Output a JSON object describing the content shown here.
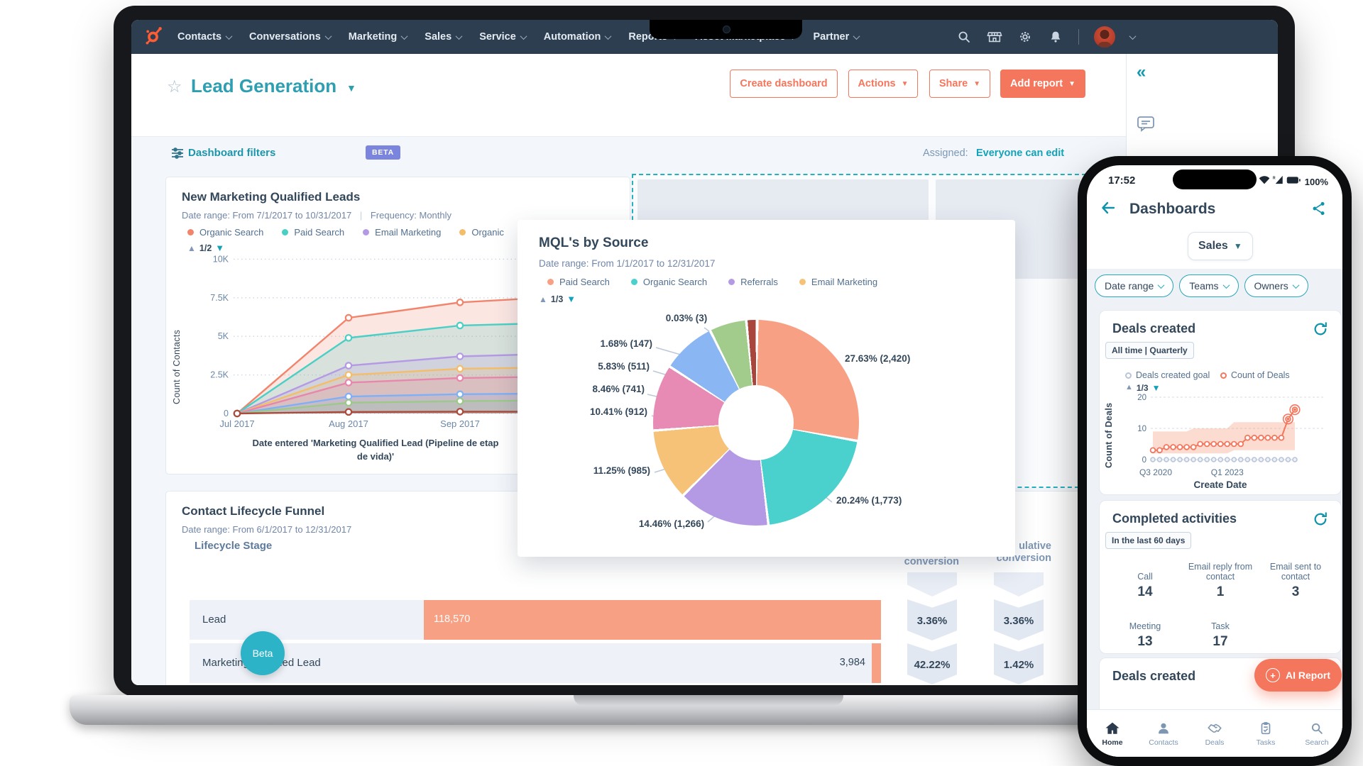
{
  "colors": {
    "nav_bg": "#2d3e50",
    "accent_orange": "#f4765c",
    "salmon": "#f8a084",
    "navy": "#33475b",
    "teal": "#14a2b8",
    "beta_badge": "#7b85dd",
    "page_bg": "#f3f6fa"
  },
  "icons": {
    "nav_right": [
      "search",
      "marketplace",
      "settings",
      "notifications"
    ],
    "phone_status": [
      "wifi",
      "cellular",
      "battery"
    ],
    "phone_nav": [
      "home",
      "contacts",
      "deals",
      "tasks",
      "search"
    ]
  },
  "laptop": {
    "nav_items": [
      "Contacts",
      "Conversations",
      "Marketing",
      "Sales",
      "Service",
      "Automation",
      "Reports",
      "Asset Marketplace",
      "Partner"
    ],
    "header": {
      "title": "Lead Generation",
      "buttons": [
        {
          "label": "Create dashboard",
          "style": "outline",
          "caret": false
        },
        {
          "label": "Actions",
          "style": "outline",
          "caret": true
        },
        {
          "label": "Share",
          "style": "outline",
          "caret": true
        },
        {
          "label": "Add report",
          "style": "solid",
          "caret": true
        }
      ]
    },
    "filters_bar": {
      "label": "Dashboard filters",
      "badge": "BETA",
      "assigned_label": "Assigned:",
      "assigned_link": "Everyone can edit"
    },
    "beta_tab": "Beta"
  },
  "chart_data": [
    {
      "id": "new_mqls",
      "type": "line",
      "title": "New Marketing Qualified Leads",
      "meta": "Date range: From 7/1/2017 to 10/31/2017",
      "meta_sep": "|",
      "meta2": "Frequency: Monthly",
      "pagination": "1/2",
      "legend": [
        {
          "label": "Organic Search",
          "color": "#f2846c"
        },
        {
          "label": "Paid Search",
          "color": "#49cfc5"
        },
        {
          "label": "Email Marketing",
          "color": "#b49ae4"
        },
        {
          "label": "Organic",
          "color": "#f3bd69"
        }
      ],
      "ylabel": "Count of Contacts",
      "ylim": [
        0,
        10
      ],
      "yticks": [
        {
          "v": 10,
          "label": "10K"
        },
        {
          "v": 7.5,
          "label": "7.5K"
        },
        {
          "v": 5,
          "label": "5K"
        },
        {
          "v": 2.5,
          "label": "2.5K"
        },
        {
          "v": 0,
          "label": "0"
        }
      ],
      "xticks": [
        "Jul 2017",
        "Aug 2017",
        "Sep 2017",
        "Oct 2017"
      ],
      "caption_line1": "Date entered 'Marketing Qualified Lead (Pipeline de etap",
      "caption_line2": "de vida)'",
      "series": [
        {
          "color": "#f2846c",
          "values": [
            0,
            6.2,
            7.2,
            7.6
          ]
        },
        {
          "color": "#49cfc5",
          "values": [
            0,
            4.9,
            5.7,
            5.9
          ]
        },
        {
          "color": "#b49ae4",
          "values": [
            0,
            3.1,
            3.7,
            3.9
          ]
        },
        {
          "color": "#f3bd69",
          "values": [
            0,
            2.5,
            2.9,
            3.0
          ]
        },
        {
          "color": "#e886ad",
          "values": [
            0,
            2.0,
            2.3,
            2.4
          ]
        },
        {
          "color": "#7fb0f5",
          "values": [
            0,
            1.1,
            1.25,
            1.3
          ]
        },
        {
          "color": "#9cc98a",
          "values": [
            0,
            0.7,
            0.8,
            0.85
          ]
        },
        {
          "color": "#ad4a3b",
          "values": [
            0,
            0.1,
            0.12,
            0.12
          ]
        }
      ]
    },
    {
      "id": "mql_source",
      "type": "pie",
      "title": "MQL's by Source",
      "meta": "Date range: From 1/1/2017 to 12/31/2017",
      "pagination": "1/3",
      "legend": [
        {
          "label": "Paid Search",
          "color": "#f8a084"
        },
        {
          "label": "Organic Search",
          "color": "#4ad0cd"
        },
        {
          "label": "Referrals",
          "color": "#b49ae4"
        },
        {
          "label": "Email Marketing",
          "color": "#f6c277"
        }
      ],
      "slices": [
        {
          "label": "27.63% (2,420)",
          "pct": 27.63,
          "count": 2420,
          "color": "#f8a084"
        },
        {
          "label": "20.24% (1,773)",
          "pct": 20.24,
          "count": 1773,
          "color": "#4ad0cd"
        },
        {
          "label": "14.46% (1,266)",
          "pct": 14.46,
          "count": 1266,
          "color": "#b49ae4"
        },
        {
          "label": "11.25% (985)",
          "pct": 11.25,
          "count": 985,
          "color": "#f6c277"
        },
        {
          "label": "10.41% (912)",
          "pct": 10.41,
          "count": 912,
          "color": "#e88bb4"
        },
        {
          "label": "8.46% (741)",
          "pct": 8.46,
          "count": 741,
          "color": "#8ab6f4"
        },
        {
          "label": "5.83% (511)",
          "pct": 5.83,
          "count": 511,
          "color": "#a2cc8c"
        },
        {
          "label": "1.68% (147)",
          "pct": 1.68,
          "count": 147,
          "color": "#a8453c"
        },
        {
          "label": "0.03% (3)",
          "pct": 0.03,
          "count": 3,
          "color": "#cdd5de"
        }
      ]
    },
    {
      "id": "lifecycle_funnel",
      "type": "funnel",
      "title": "Contact Lifecycle Funnel",
      "meta": "Date range: From 6/1/2017 to 12/31/2017",
      "stage_header": "Lifecycle Stage",
      "col1_header": "conversion",
      "col2_header_line1": "ulative",
      "col2_header_line2": "conversion",
      "rows": [
        {
          "label": "Lead",
          "value": "118,570",
          "bar_pct": 100,
          "value_inside": true,
          "conversion": "3.36%",
          "cumulative": "3.36%"
        },
        {
          "label": "Marketing Qualified Lead",
          "value": "3,984",
          "bar_pct": 2,
          "value_inside": false,
          "conversion": "42.22%",
          "cumulative": "1.42%"
        }
      ]
    },
    {
      "id": "deals_created",
      "type": "line",
      "title": "Deals created",
      "range_chip": "All time | Quarterly",
      "pagination": "1/3",
      "legend": [
        {
          "label": "Deals created goal",
          "color": "#b9c5d8"
        },
        {
          "label": "Count of Deals",
          "color": "#f4765c"
        }
      ],
      "ylabel": "Count of Deals",
      "xlabel": "Create Date",
      "ylim": [
        0,
        20
      ],
      "yticks": [
        {
          "v": 0,
          "label": "0"
        },
        {
          "v": 10,
          "label": "10"
        },
        {
          "v": 20,
          "label": "20"
        }
      ],
      "xticks": [
        "Q3 2020",
        "Q1 2023"
      ],
      "count_of_deals": [
        3,
        3,
        4,
        4,
        4,
        4,
        4,
        5,
        5,
        5,
        5,
        5,
        5,
        5,
        7,
        7,
        7,
        7,
        7,
        7,
        13,
        16
      ],
      "goal": [
        0,
        0,
        0,
        0,
        0,
        0,
        0,
        0,
        0,
        0,
        0,
        0,
        0,
        0,
        0,
        0,
        0,
        0,
        0,
        0,
        0,
        0
      ],
      "band_upper": [
        9,
        9,
        9,
        9,
        9,
        9,
        10,
        10,
        10,
        10,
        10,
        10,
        12,
        12,
        12,
        12,
        12,
        12,
        12,
        12,
        12,
        12
      ],
      "band_lower": [
        2,
        2,
        2,
        2,
        2,
        2,
        2,
        2,
        2,
        2,
        2,
        2,
        3,
        3,
        3,
        3,
        3,
        3,
        3,
        3,
        3,
        3
      ],
      "highlight_last": 2
    }
  ],
  "phone": {
    "status": {
      "time": "17:52",
      "battery": "100%"
    },
    "header_title": "Dashboards",
    "dashboard_select": "Sales",
    "chips": [
      "Date range",
      "Teams",
      "Owners"
    ],
    "activities": {
      "title": "Completed activities",
      "range_chip": "In the last 60 days",
      "stats": [
        {
          "label": "Call",
          "value": "14"
        },
        {
          "label": "Email reply from contact",
          "value": "1"
        },
        {
          "label": "Email sent to contact",
          "value": "3"
        },
        {
          "label": "Meeting",
          "value": "13"
        },
        {
          "label": "Task",
          "value": "17"
        }
      ]
    },
    "partial_card_title": "Deals created",
    "fab_label": "AI Report",
    "nav": [
      {
        "label": "Home",
        "active": true
      },
      {
        "label": "Contacts",
        "active": false
      },
      {
        "label": "Deals",
        "active": false
      },
      {
        "label": "Tasks",
        "active": false
      },
      {
        "label": "Search",
        "active": false
      }
    ]
  }
}
